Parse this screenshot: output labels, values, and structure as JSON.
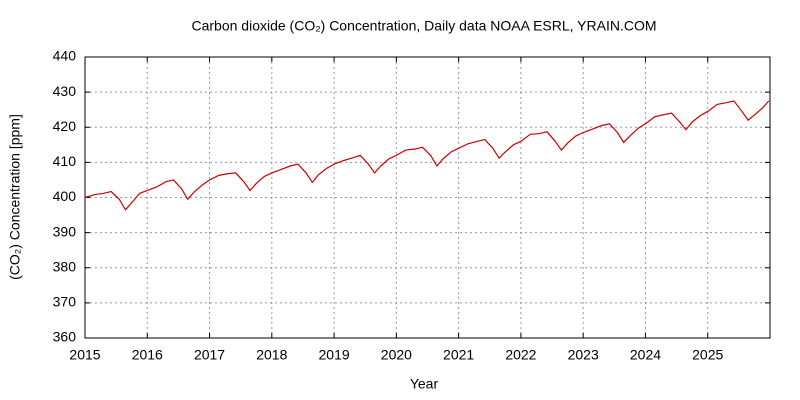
{
  "chart_data": {
    "type": "line",
    "title": "Carbon dioxide (CO₂) Concentration, Daily data NOAA ESRL, YRAIN.COM",
    "x_label": "Year",
    "y_label": "(CO₂) Concentration [ppm]",
    "xlim": [
      2015,
      2026
    ],
    "ylim": [
      360,
      440
    ],
    "xticks": [
      2015,
      2016,
      2017,
      2018,
      2019,
      2020,
      2021,
      2022,
      2023,
      2024,
      2025
    ],
    "yticks": [
      360,
      370,
      380,
      390,
      400,
      410,
      420,
      430,
      440
    ],
    "grid": true,
    "series": [
      {
        "color": "#cc0000",
        "x": [
          2015,
          2015.15,
          2015.3,
          2015.42,
          2015.55,
          2015.65,
          2015.75,
          2015.88,
          2016,
          2016.15,
          2016.3,
          2016.42,
          2016.55,
          2016.65,
          2016.75,
          2016.88,
          2017,
          2017.15,
          2017.3,
          2017.42,
          2017.55,
          2017.65,
          2017.75,
          2017.88,
          2018,
          2018.15,
          2018.3,
          2018.42,
          2018.55,
          2018.65,
          2018.75,
          2018.88,
          2019,
          2019.15,
          2019.3,
          2019.42,
          2019.55,
          2019.65,
          2019.75,
          2019.88,
          2020,
          2020.15,
          2020.3,
          2020.42,
          2020.55,
          2020.65,
          2020.75,
          2020.88,
          2021,
          2021.15,
          2021.3,
          2021.42,
          2021.55,
          2021.65,
          2021.75,
          2021.88,
          2022,
          2022.15,
          2022.3,
          2022.42,
          2022.55,
          2022.65,
          2022.75,
          2022.88,
          2023,
          2023.15,
          2023.3,
          2023.42,
          2023.55,
          2023.65,
          2023.75,
          2023.88,
          2024,
          2024.15,
          2024.3,
          2024.42,
          2024.55,
          2024.65,
          2024.75,
          2024.88,
          2025,
          2025.15,
          2025.3,
          2025.42,
          2025.55,
          2025.65,
          2025.75,
          2025.88,
          2025.98
        ],
        "values": [
          400,
          400.8,
          401.2,
          401.7,
          399.5,
          396.5,
          398.5,
          401.2,
          402,
          403,
          404.5,
          405,
          402.5,
          399.5,
          401.5,
          403.5,
          405,
          406.3,
          406.8,
          407,
          404.5,
          402,
          404,
          406,
          407,
          408,
          409,
          409.5,
          407,
          404.3,
          406.5,
          408.3,
          409.5,
          410.5,
          411.3,
          412,
          409.5,
          407,
          409,
          411,
          412,
          413.5,
          413.8,
          414.3,
          412,
          409,
          411,
          413,
          414,
          415.3,
          416,
          416.5,
          414,
          411.2,
          413,
          415,
          416,
          418,
          418.2,
          418.7,
          416,
          413.5,
          415.5,
          417.5,
          418.5,
          419.5,
          420.5,
          421,
          418.5,
          415.7,
          417.5,
          419.7,
          421,
          423,
          423.6,
          424,
          421.5,
          419.3,
          421.5,
          423.3,
          424.5,
          426.5,
          427,
          427.5,
          424.5,
          422,
          423.5,
          425.5,
          427.5
        ]
      }
    ]
  }
}
